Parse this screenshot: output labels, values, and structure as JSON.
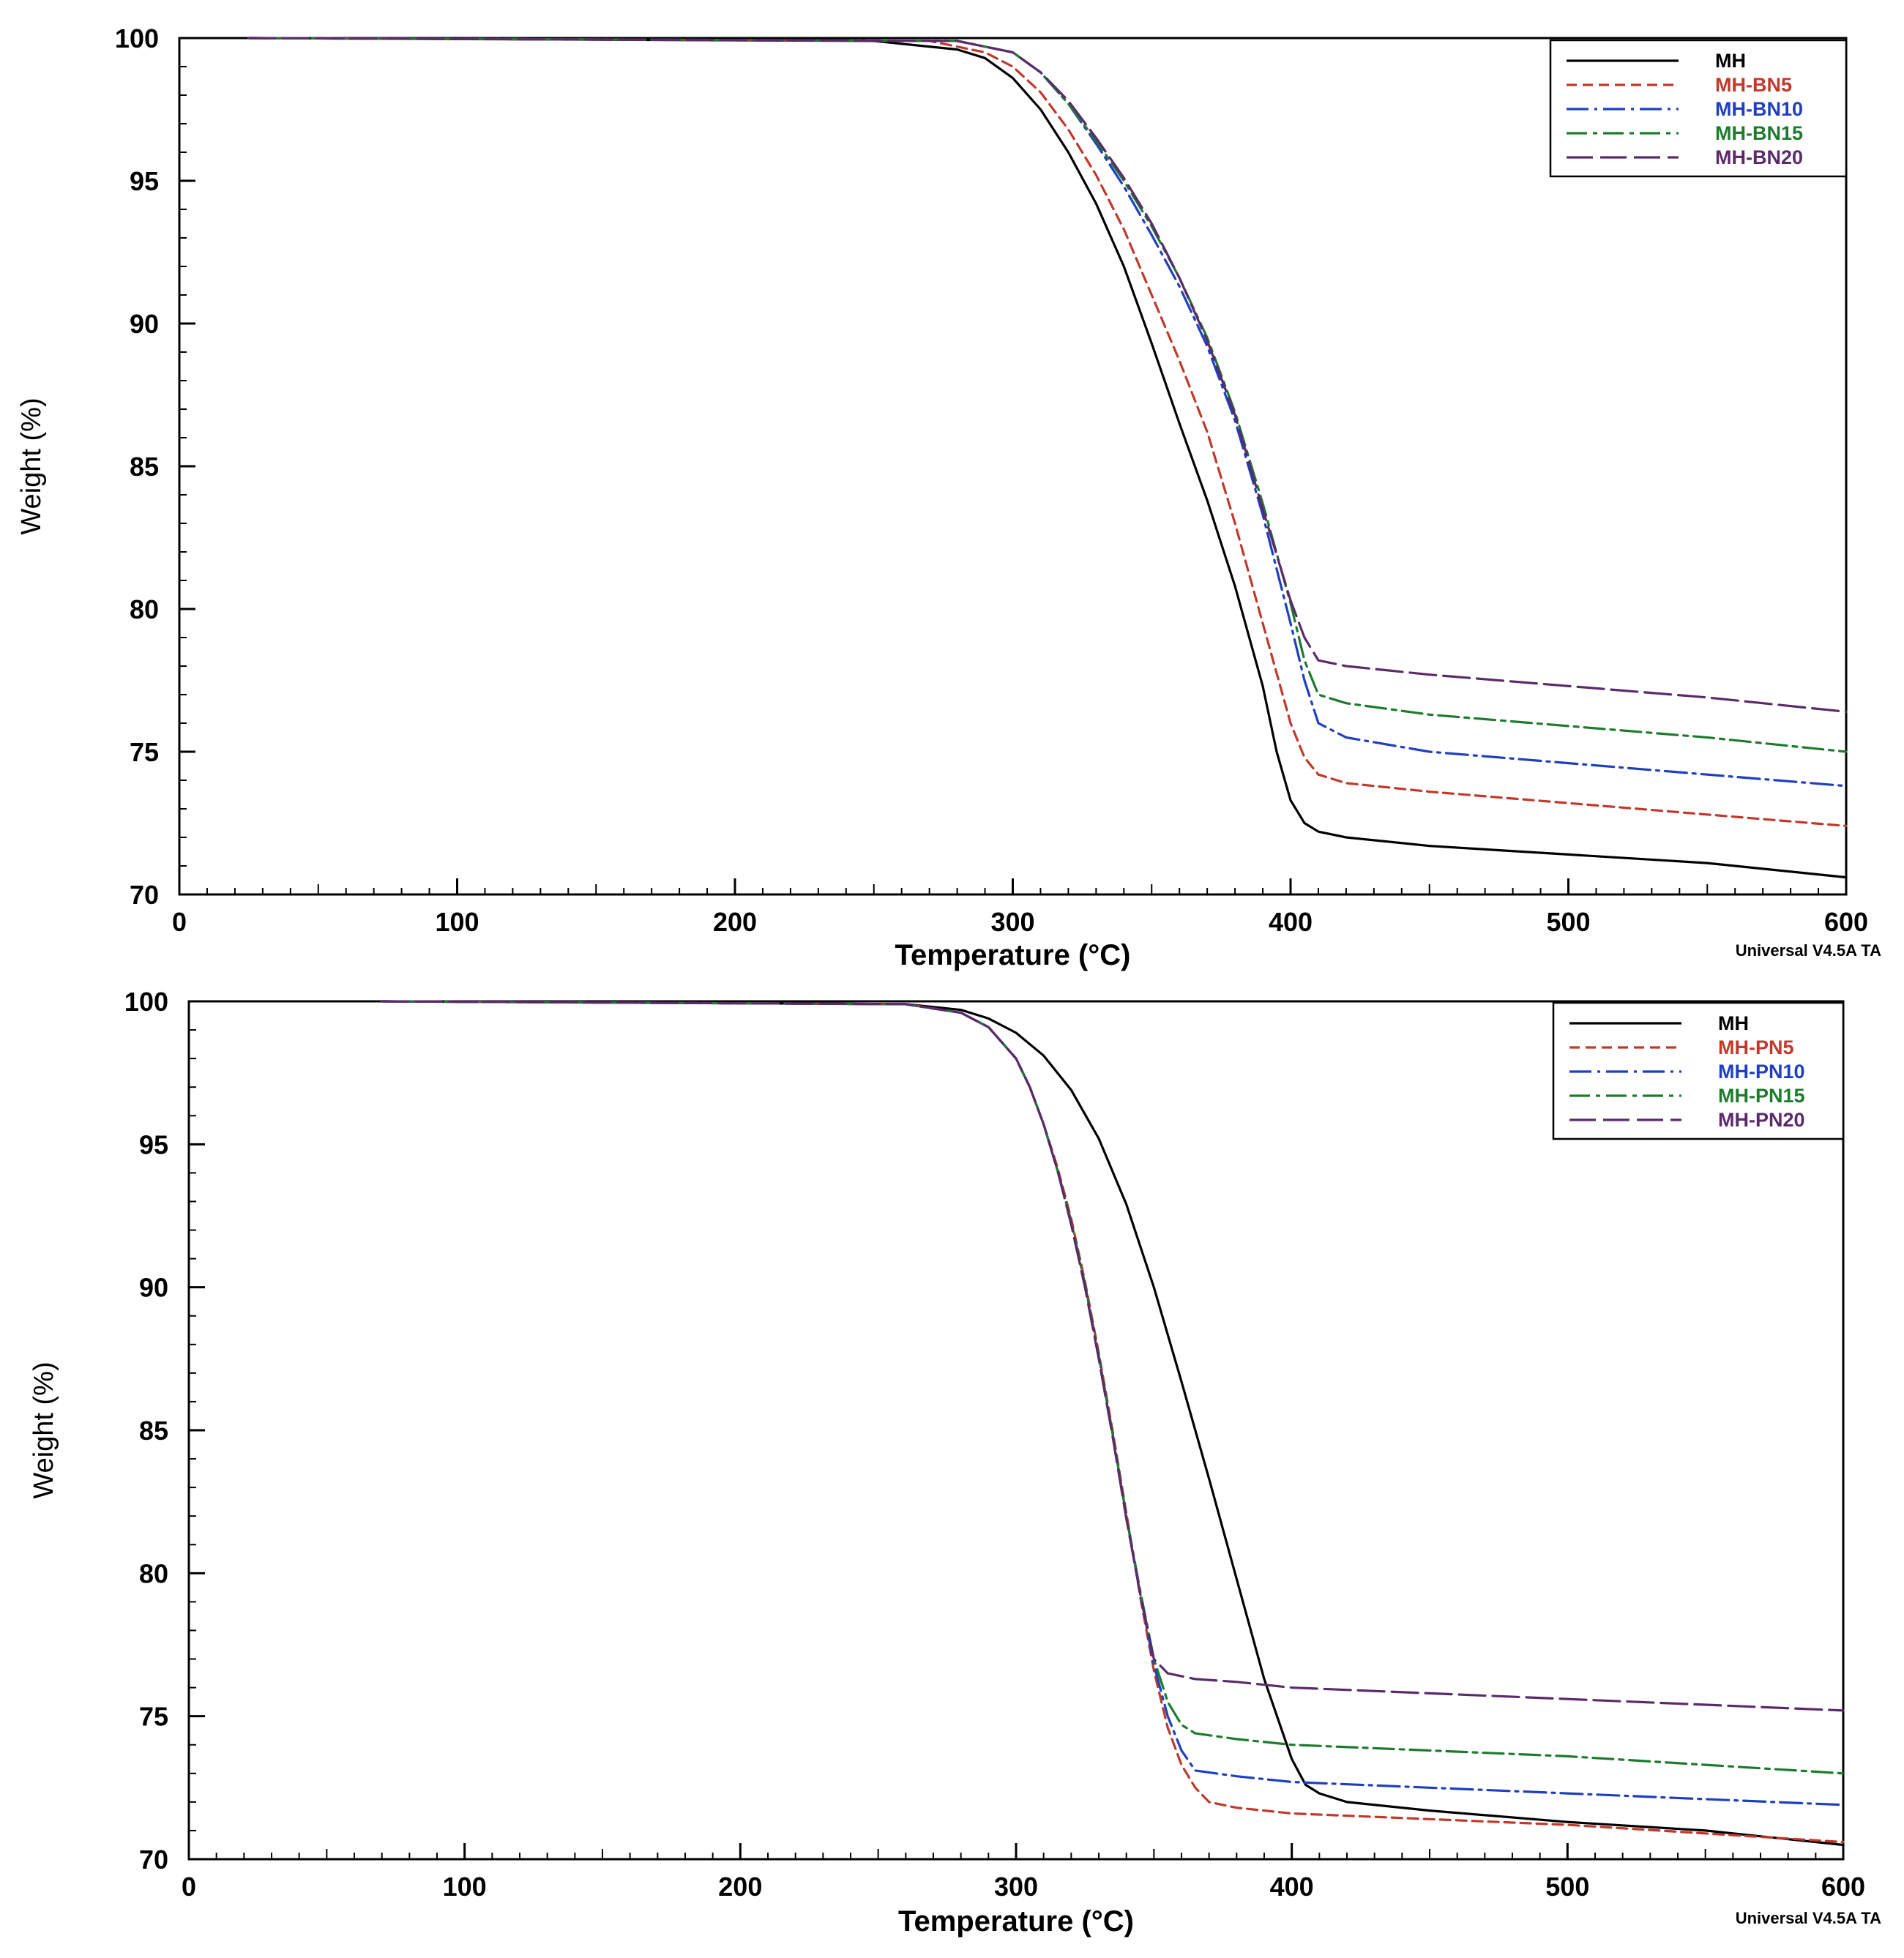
{
  "colors": {
    "MH": "#000000",
    "red": "#c0392b",
    "blue": "#1f3fbf",
    "green": "#1e7b2e",
    "purple": "#5a2a6a",
    "axis": "#000000"
  },
  "chart_data": [
    {
      "type": "line",
      "xlabel": "Temperature (°C)",
      "ylabel": "Weight (%)",
      "xlim": [
        0,
        600
      ],
      "ylim": [
        70,
        100
      ],
      "xticks": [
        0,
        100,
        200,
        300,
        400,
        500,
        600
      ],
      "yticks": [
        70,
        75,
        80,
        85,
        90,
        95,
        100
      ],
      "grid": false,
      "legend_position": "top-right",
      "footer": "Universal V4.5A TA",
      "series": [
        {
          "name": "MH",
          "color": "#000000",
          "dash": "none",
          "x": [
            25,
            250,
            280,
            290,
            300,
            310,
            320,
            330,
            340,
            350,
            360,
            370,
            380,
            390,
            395,
            400,
            405,
            410,
            420,
            450,
            500,
            550,
            600
          ],
          "y": [
            100,
            99.9,
            99.6,
            99.3,
            98.6,
            97.5,
            96.0,
            94.2,
            92.0,
            89.3,
            86.5,
            83.8,
            80.8,
            77.3,
            75.0,
            73.3,
            72.5,
            72.2,
            72.0,
            71.7,
            71.4,
            71.1,
            70.6
          ]
        },
        {
          "name": "MH-BN5",
          "color": "#c0392b",
          "dash": "14,8",
          "x": [
            25,
            270,
            290,
            300,
            310,
            320,
            330,
            340,
            350,
            360,
            370,
            380,
            390,
            400,
            405,
            410,
            420,
            450,
            500,
            550,
            600
          ],
          "y": [
            100,
            99.9,
            99.5,
            99.0,
            98.1,
            96.8,
            95.2,
            93.3,
            91.0,
            88.7,
            86.2,
            83.0,
            79.5,
            76.0,
            74.8,
            74.2,
            73.9,
            73.6,
            73.2,
            72.8,
            72.4
          ]
        },
        {
          "name": "MH-BN10",
          "color": "#1f3fbf",
          "dash": "30,8,4,8",
          "x": [
            25,
            280,
            300,
            310,
            320,
            330,
            340,
            350,
            360,
            370,
            380,
            390,
            400,
            405,
            410,
            420,
            450,
            500,
            550,
            600
          ],
          "y": [
            100,
            99.9,
            99.5,
            98.8,
            97.7,
            96.3,
            94.8,
            93.1,
            91.3,
            89.2,
            86.6,
            83.3,
            79.5,
            77.5,
            76.0,
            75.5,
            75.0,
            74.6,
            74.2,
            73.8
          ]
        },
        {
          "name": "MH-BN15",
          "color": "#1e7b2e",
          "dash": "28,8,6,8",
          "x": [
            25,
            280,
            300,
            310,
            320,
            330,
            340,
            350,
            360,
            370,
            380,
            390,
            400,
            405,
            410,
            420,
            450,
            500,
            550,
            600
          ],
          "y": [
            100,
            99.9,
            99.5,
            98.8,
            97.7,
            96.4,
            95.0,
            93.4,
            91.6,
            89.5,
            86.9,
            83.7,
            80.2,
            78.2,
            77.0,
            76.7,
            76.3,
            75.9,
            75.5,
            75.0
          ]
        },
        {
          "name": "MH-BN20",
          "color": "#5a2a6a",
          "dash": "36,10",
          "x": [
            25,
            280,
            300,
            310,
            320,
            330,
            340,
            350,
            360,
            370,
            380,
            390,
            400,
            405,
            410,
            420,
            450,
            500,
            550,
            600
          ],
          "y": [
            100,
            99.9,
            99.5,
            98.8,
            97.8,
            96.5,
            95.1,
            93.5,
            91.6,
            89.4,
            86.8,
            83.5,
            80.3,
            79.0,
            78.2,
            78.0,
            77.7,
            77.3,
            76.9,
            76.4
          ]
        }
      ]
    },
    {
      "type": "line",
      "xlabel": "Temperature (°C)",
      "ylabel": "Weight (%)",
      "xlim": [
        0,
        600
      ],
      "ylim": [
        70,
        100
      ],
      "xticks": [
        0,
        100,
        200,
        300,
        400,
        500,
        600
      ],
      "yticks": [
        70,
        75,
        80,
        85,
        90,
        95,
        100
      ],
      "grid": false,
      "legend_position": "top-right",
      "footer": "Universal V4.5A TA",
      "series": [
        {
          "name": "MH",
          "color": "#000000",
          "dash": "none",
          "x": [
            70,
            260,
            280,
            290,
            300,
            310,
            320,
            330,
            340,
            350,
            360,
            370,
            380,
            390,
            400,
            405,
            410,
            420,
            450,
            500,
            550,
            600
          ],
          "y": [
            100,
            99.9,
            99.7,
            99.4,
            98.9,
            98.1,
            96.9,
            95.2,
            92.9,
            90.0,
            86.7,
            83.3,
            79.8,
            76.3,
            73.5,
            72.6,
            72.3,
            72.0,
            71.7,
            71.3,
            71.0,
            70.5
          ]
        },
        {
          "name": "MH-PN5",
          "color": "#c0392b",
          "dash": "14,8",
          "x": [
            70,
            260,
            280,
            290,
            300,
            305,
            310,
            315,
            320,
            325,
            330,
            335,
            340,
            345,
            350,
            355,
            360,
            365,
            370,
            380,
            400,
            450,
            500,
            550,
            600
          ],
          "y": [
            100,
            99.9,
            99.6,
            99.1,
            98.0,
            97.0,
            95.7,
            94.2,
            92.4,
            90.2,
            87.7,
            85.0,
            82.1,
            79.2,
            76.6,
            74.6,
            73.3,
            72.5,
            72.0,
            71.8,
            71.6,
            71.4,
            71.2,
            70.9,
            70.6
          ]
        },
        {
          "name": "MH-PN10",
          "color": "#1f3fbf",
          "dash": "30,8,4,8",
          "x": [
            70,
            260,
            280,
            290,
            300,
            305,
            310,
            315,
            320,
            325,
            330,
            335,
            340,
            345,
            350,
            355,
            360,
            365,
            380,
            400,
            450,
            500,
            550,
            600
          ],
          "y": [
            100,
            99.9,
            99.6,
            99.1,
            98.0,
            97.0,
            95.7,
            94.1,
            92.3,
            90.1,
            87.6,
            84.9,
            82.0,
            79.3,
            76.8,
            75.0,
            73.8,
            73.1,
            72.9,
            72.7,
            72.5,
            72.3,
            72.1,
            71.9
          ]
        },
        {
          "name": "MH-PN15",
          "color": "#1e7b2e",
          "dash": "28,8,6,8",
          "x": [
            70,
            260,
            280,
            290,
            300,
            305,
            310,
            315,
            320,
            325,
            330,
            335,
            340,
            345,
            350,
            355,
            360,
            365,
            380,
            400,
            450,
            500,
            550,
            600
          ],
          "y": [
            100,
            99.9,
            99.6,
            99.1,
            98.0,
            97.0,
            95.7,
            94.1,
            92.3,
            90.1,
            87.6,
            84.9,
            82.0,
            79.4,
            77.0,
            75.5,
            74.7,
            74.4,
            74.2,
            74.0,
            73.8,
            73.6,
            73.3,
            73.0
          ]
        },
        {
          "name": "MH-PN20",
          "color": "#5a2a6a",
          "dash": "36,10",
          "x": [
            70,
            260,
            280,
            290,
            300,
            305,
            310,
            315,
            320,
            325,
            330,
            335,
            340,
            345,
            350,
            355,
            365,
            380,
            400,
            450,
            500,
            550,
            600
          ],
          "y": [
            100,
            99.9,
            99.6,
            99.1,
            98.0,
            97.0,
            95.7,
            94.1,
            92.2,
            90.0,
            87.5,
            84.8,
            81.9,
            79.3,
            77.0,
            76.5,
            76.3,
            76.2,
            76.0,
            75.8,
            75.6,
            75.4,
            75.2
          ]
        }
      ]
    }
  ]
}
